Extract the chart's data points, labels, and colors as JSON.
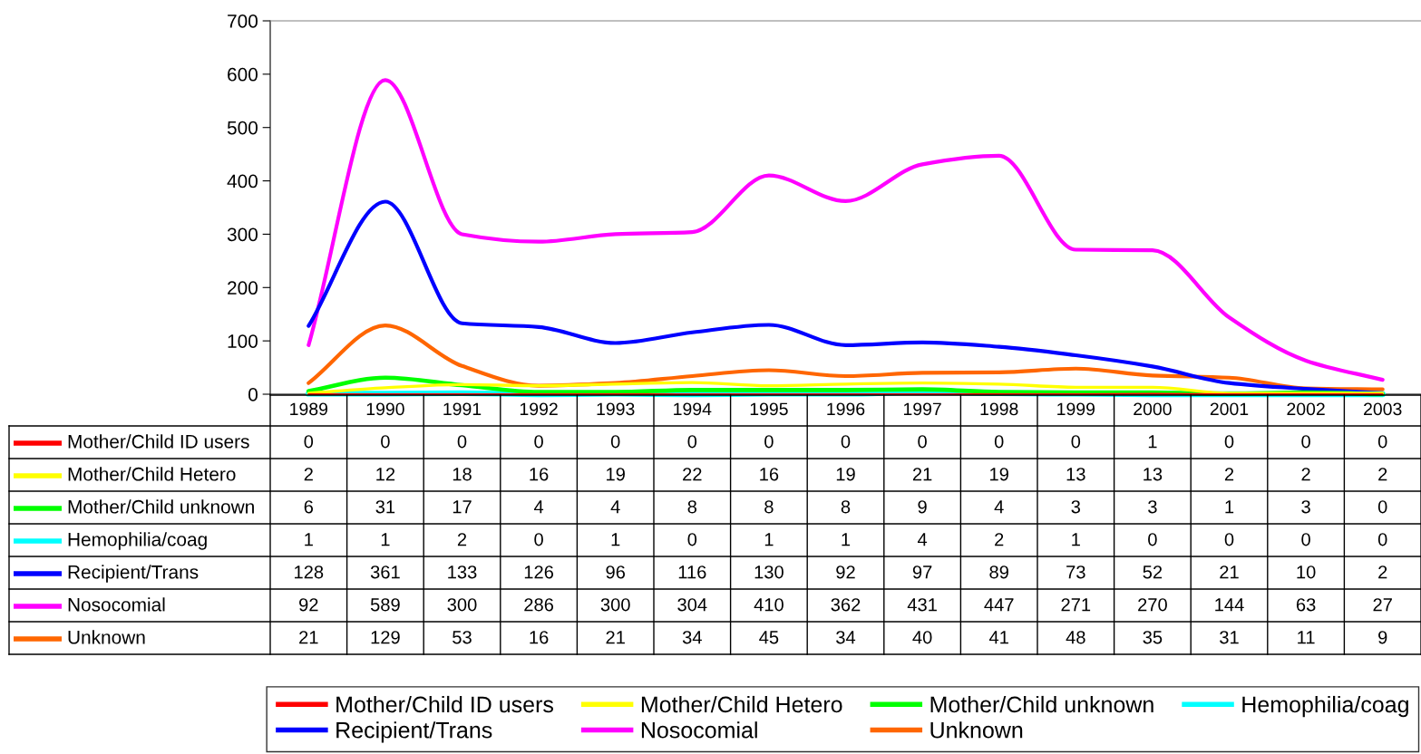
{
  "chart_data": {
    "type": "line",
    "categories": [
      "1989",
      "1990",
      "1991",
      "1992",
      "1993",
      "1994",
      "1995",
      "1996",
      "1997",
      "1998",
      "1999",
      "2000",
      "2001",
      "2002",
      "2003"
    ],
    "series": [
      {
        "name": "Mother/Child ID users",
        "color": "#ff0000",
        "values": [
          0,
          0,
          0,
          0,
          0,
          0,
          0,
          0,
          0,
          0,
          0,
          1,
          0,
          0,
          0
        ]
      },
      {
        "name": "Mother/Child Hetero",
        "color": "#ffff00",
        "values": [
          2,
          12,
          18,
          16,
          19,
          22,
          16,
          19,
          21,
          19,
          13,
          13,
          2,
          2,
          2
        ]
      },
      {
        "name": "Mother/Child unknown",
        "color": "#00ff00",
        "values": [
          6,
          31,
          17,
          4,
          4,
          8,
          8,
          8,
          9,
          4,
          3,
          3,
          1,
          3,
          0
        ]
      },
      {
        "name": "Hemophilia/coag",
        "color": "#00ffff",
        "values": [
          1,
          1,
          2,
          0,
          1,
          0,
          1,
          1,
          4,
          2,
          1,
          0,
          0,
          0,
          0
        ]
      },
      {
        "name": "Recipient/Trans",
        "color": "#0000ff",
        "values": [
          128,
          361,
          133,
          126,
          96,
          116,
          130,
          92,
          97,
          89,
          73,
          52,
          21,
          10,
          2
        ]
      },
      {
        "name": "Nosocomial",
        "color": "#ff00ff",
        "values": [
          92,
          589,
          300,
          286,
          300,
          304,
          410,
          362,
          431,
          447,
          271,
          270,
          144,
          63,
          27
        ]
      },
      {
        "name": "Unknown",
        "color": "#ff6600",
        "values": [
          21,
          129,
          53,
          16,
          21,
          34,
          45,
          34,
          40,
          41,
          48,
          35,
          31,
          11,
          9
        ]
      }
    ],
    "ylim": [
      0,
      700
    ],
    "yticks": [
      0,
      100,
      200,
      300,
      400,
      500,
      600,
      700
    ],
    "grid": false,
    "legend": "bottom",
    "data_labels": true,
    "marker": "none",
    "line_style": "solid"
  }
}
